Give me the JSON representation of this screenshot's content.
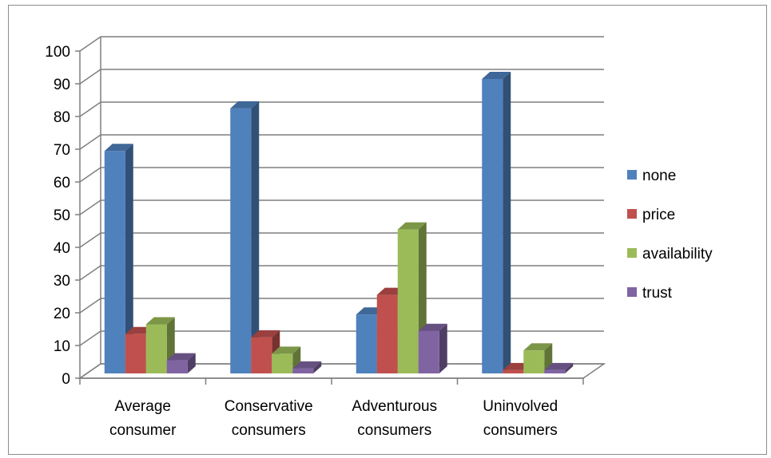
{
  "chart_data": {
    "type": "bar",
    "style": "3d-clustered-column",
    "categories": [
      [
        "Average",
        "consumer"
      ],
      [
        "Conservative",
        "consumers"
      ],
      [
        "Adventurous",
        "consumers"
      ],
      [
        "Uninvolved",
        "consumers"
      ]
    ],
    "series": [
      {
        "name": "none",
        "color": "#4F81BD",
        "values": [
          68,
          81,
          18,
          90
        ]
      },
      {
        "name": "price",
        "color": "#C0504D",
        "values": [
          12,
          11,
          24,
          1
        ]
      },
      {
        "name": "availability",
        "color": "#9BBB59",
        "values": [
          15,
          6,
          44,
          7
        ]
      },
      {
        "name": "trust",
        "color": "#8064A2",
        "values": [
          4,
          1.5,
          13,
          1
        ]
      }
    ],
    "ylim": [
      0,
      100
    ],
    "yticks": [
      "0",
      "10",
      "20",
      "30",
      "40",
      "50",
      "60",
      "70",
      "80",
      "90",
      "100"
    ],
    "grid": true,
    "legend_position": "right",
    "title": "",
    "xlabel": "",
    "ylabel": ""
  }
}
